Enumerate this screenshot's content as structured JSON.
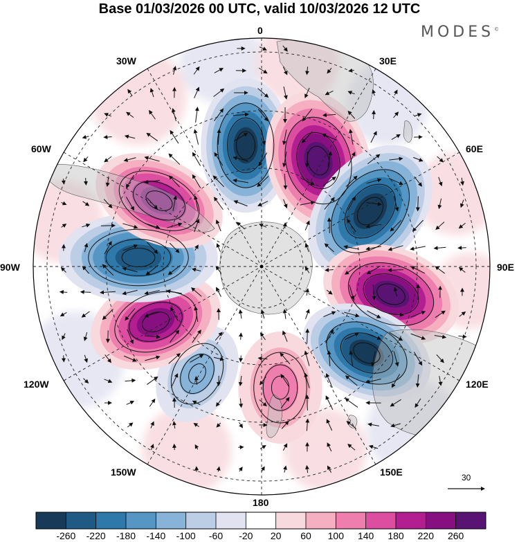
{
  "title": "Base 01/03/2026 00 UTC, valid 10/03/2026 12 UTC",
  "logo": "MODES",
  "logo_mark": "©",
  "longitude_labels": {
    "lon_0": "0",
    "lon_30e": "30E",
    "lon_60e": "60E",
    "lon_90e": "90E",
    "lon_120e": "120E",
    "lon_150e": "150E",
    "lon_180": "180",
    "lon_150w": "150W",
    "lon_120w": "120W",
    "lon_90w": "90W",
    "lon_60w": "60W",
    "lon_30w": "30W"
  },
  "reference_vector": {
    "value": "30"
  },
  "colorbar": {
    "ticks": [
      "-260",
      "-220",
      "-180",
      "-140",
      "-100",
      "-60",
      "-20",
      "20",
      "60",
      "100",
      "140",
      "180",
      "220",
      "260"
    ],
    "colors": [
      "#163a57",
      "#1f5a85",
      "#2e78aa",
      "#5596c5",
      "#88b3d8",
      "#bccde6",
      "#e2e3f1",
      "#ffffff",
      "#f8d9de",
      "#f5afc1",
      "#ee7eae",
      "#dc4ea0",
      "#b31f91",
      "#86107f",
      "#581373"
    ]
  },
  "anomaly_centers": [
    {
      "name": "low-near-0",
      "value": -260
    },
    {
      "name": "high-near-30e",
      "value": 260
    },
    {
      "name": "low-near-60e",
      "value": -260
    },
    {
      "name": "high-near-90e",
      "value": 260
    },
    {
      "name": "low-near-120e",
      "value": -260
    },
    {
      "name": "high-near-170e",
      "value": 100
    },
    {
      "name": "low-near-150w",
      "value": -100
    },
    {
      "name": "high-near-120w",
      "value": 220
    },
    {
      "name": "low-near-90w",
      "value": -220
    },
    {
      "name": "high-near-60w",
      "value": 220
    }
  ]
}
